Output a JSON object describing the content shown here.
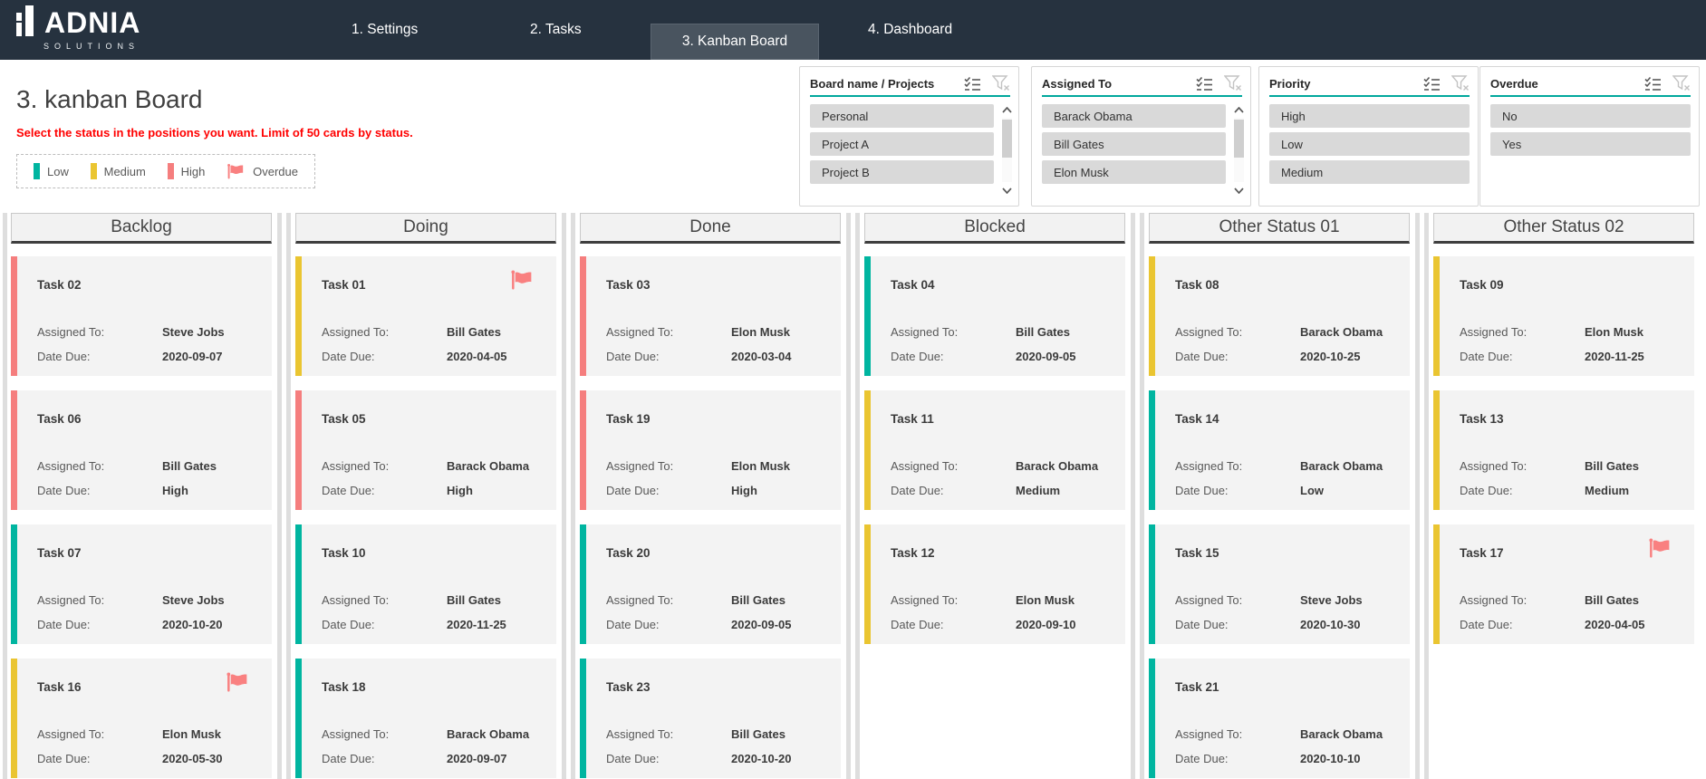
{
  "nav": {
    "logo_title": "ADNIA",
    "logo_subtitle": "SOLUTIONS",
    "tabs": [
      {
        "label": "1. Settings",
        "active": false
      },
      {
        "label": "2. Tasks",
        "active": false
      },
      {
        "label": "3. Kanban Board",
        "active": true
      },
      {
        "label": "4. Dashboard",
        "active": false
      }
    ]
  },
  "page": {
    "title": "3. kanban Board",
    "subtitle": "Select the status in the positions you want.  Limit of 50 cards by status.",
    "legend": [
      {
        "label": "Low",
        "swatch": "#00b5a0"
      },
      {
        "label": "Medium",
        "swatch": "#eac531"
      },
      {
        "label": "High",
        "swatch": "#f57e7e"
      },
      {
        "label": "Overdue",
        "swatch": "flag"
      }
    ]
  },
  "slicers": [
    {
      "title": "Board name / Projects",
      "items": [
        "Personal",
        "Project A",
        "Project B"
      ],
      "scrollbar": true
    },
    {
      "title": "Assigned To",
      "items": [
        "Barack Obama",
        "Bill Gates",
        "Elon Musk"
      ],
      "scrollbar": true
    },
    {
      "title": "Priority",
      "items": [
        "High",
        "Low",
        "Medium"
      ],
      "scrollbar": false
    },
    {
      "title": "Overdue",
      "items": [
        "No",
        "Yes"
      ],
      "scrollbar": false
    }
  ],
  "board": {
    "labels": {
      "assigned": "Assigned To:",
      "due": "Date Due:"
    },
    "columns": [
      {
        "title": "Backlog",
        "cards": [
          {
            "title": "Task 02",
            "priority": "high",
            "assigned": "Steve Jobs",
            "due": "2020-09-07",
            "flag": false
          },
          {
            "title": "Task 06",
            "priority": "high",
            "assigned": "Bill Gates",
            "due": "High",
            "flag": false
          },
          {
            "title": "Task 07",
            "priority": "low",
            "assigned": "Steve Jobs",
            "due": "2020-10-20",
            "flag": false
          },
          {
            "title": "Task 16",
            "priority": "medium",
            "assigned": "Elon Musk",
            "due": "2020-05-30",
            "flag": true
          }
        ]
      },
      {
        "title": "Doing",
        "cards": [
          {
            "title": "Task 01",
            "priority": "medium",
            "assigned": "Bill Gates",
            "due": "2020-04-05",
            "flag": true
          },
          {
            "title": "Task 05",
            "priority": "high",
            "assigned": "Barack Obama",
            "due": "High",
            "flag": false
          },
          {
            "title": "Task 10",
            "priority": "low",
            "assigned": "Bill Gates",
            "due": "2020-11-25",
            "flag": false
          },
          {
            "title": "Task 18",
            "priority": "low",
            "assigned": "Barack Obama",
            "due": "2020-09-07",
            "flag": false
          }
        ]
      },
      {
        "title": "Done",
        "cards": [
          {
            "title": "Task 03",
            "priority": "high",
            "assigned": "Elon Musk",
            "due": "2020-03-04",
            "flag": false
          },
          {
            "title": "Task 19",
            "priority": "high",
            "assigned": "Elon Musk",
            "due": "High",
            "flag": false
          },
          {
            "title": "Task 20",
            "priority": "low",
            "assigned": "Bill Gates",
            "due": "2020-09-05",
            "flag": false
          },
          {
            "title": "Task 23",
            "priority": "low",
            "assigned": "Bill Gates",
            "due": "2020-10-20",
            "flag": false
          }
        ]
      },
      {
        "title": "Blocked",
        "cards": [
          {
            "title": "Task 04",
            "priority": "low",
            "assigned": "Bill Gates",
            "due": "2020-09-05",
            "flag": false
          },
          {
            "title": "Task 11",
            "priority": "medium",
            "assigned": "Barack Obama",
            "due": "Medium",
            "flag": false
          },
          {
            "title": "Task 12",
            "priority": "medium",
            "assigned": "Elon Musk",
            "due": "2020-09-10",
            "flag": false
          }
        ]
      },
      {
        "title": "Other Status 01",
        "cards": [
          {
            "title": "Task 08",
            "priority": "medium",
            "assigned": "Barack Obama",
            "due": "2020-10-25",
            "flag": false
          },
          {
            "title": "Task 14",
            "priority": "low",
            "assigned": "Barack Obama",
            "due": "Low",
            "flag": false
          },
          {
            "title": "Task 15",
            "priority": "low",
            "assigned": "Steve Jobs",
            "due": "2020-10-30",
            "flag": false
          },
          {
            "title": "Task 21",
            "priority": "low",
            "assigned": "Barack Obama",
            "due": "2020-10-10",
            "flag": false
          }
        ]
      },
      {
        "title": "Other Status 02",
        "cards": [
          {
            "title": "Task 09",
            "priority": "medium",
            "assigned": "Elon Musk",
            "due": "2020-11-25",
            "flag": false
          },
          {
            "title": "Task 13",
            "priority": "medium",
            "assigned": "Bill Gates",
            "due": "Medium",
            "flag": false
          },
          {
            "title": "Task 17",
            "priority": "medium",
            "assigned": "Bill Gates",
            "due": "2020-04-05",
            "flag": true
          }
        ]
      }
    ]
  },
  "colors": {
    "nav_bg": "#26323f",
    "nav_active_tab_bg": "#49545f",
    "slicer_underline": "#00a89c",
    "flag": "#f98080",
    "priority": {
      "low": "#00b5a0",
      "medium": "#eac531",
      "high": "#f57e7e"
    }
  }
}
